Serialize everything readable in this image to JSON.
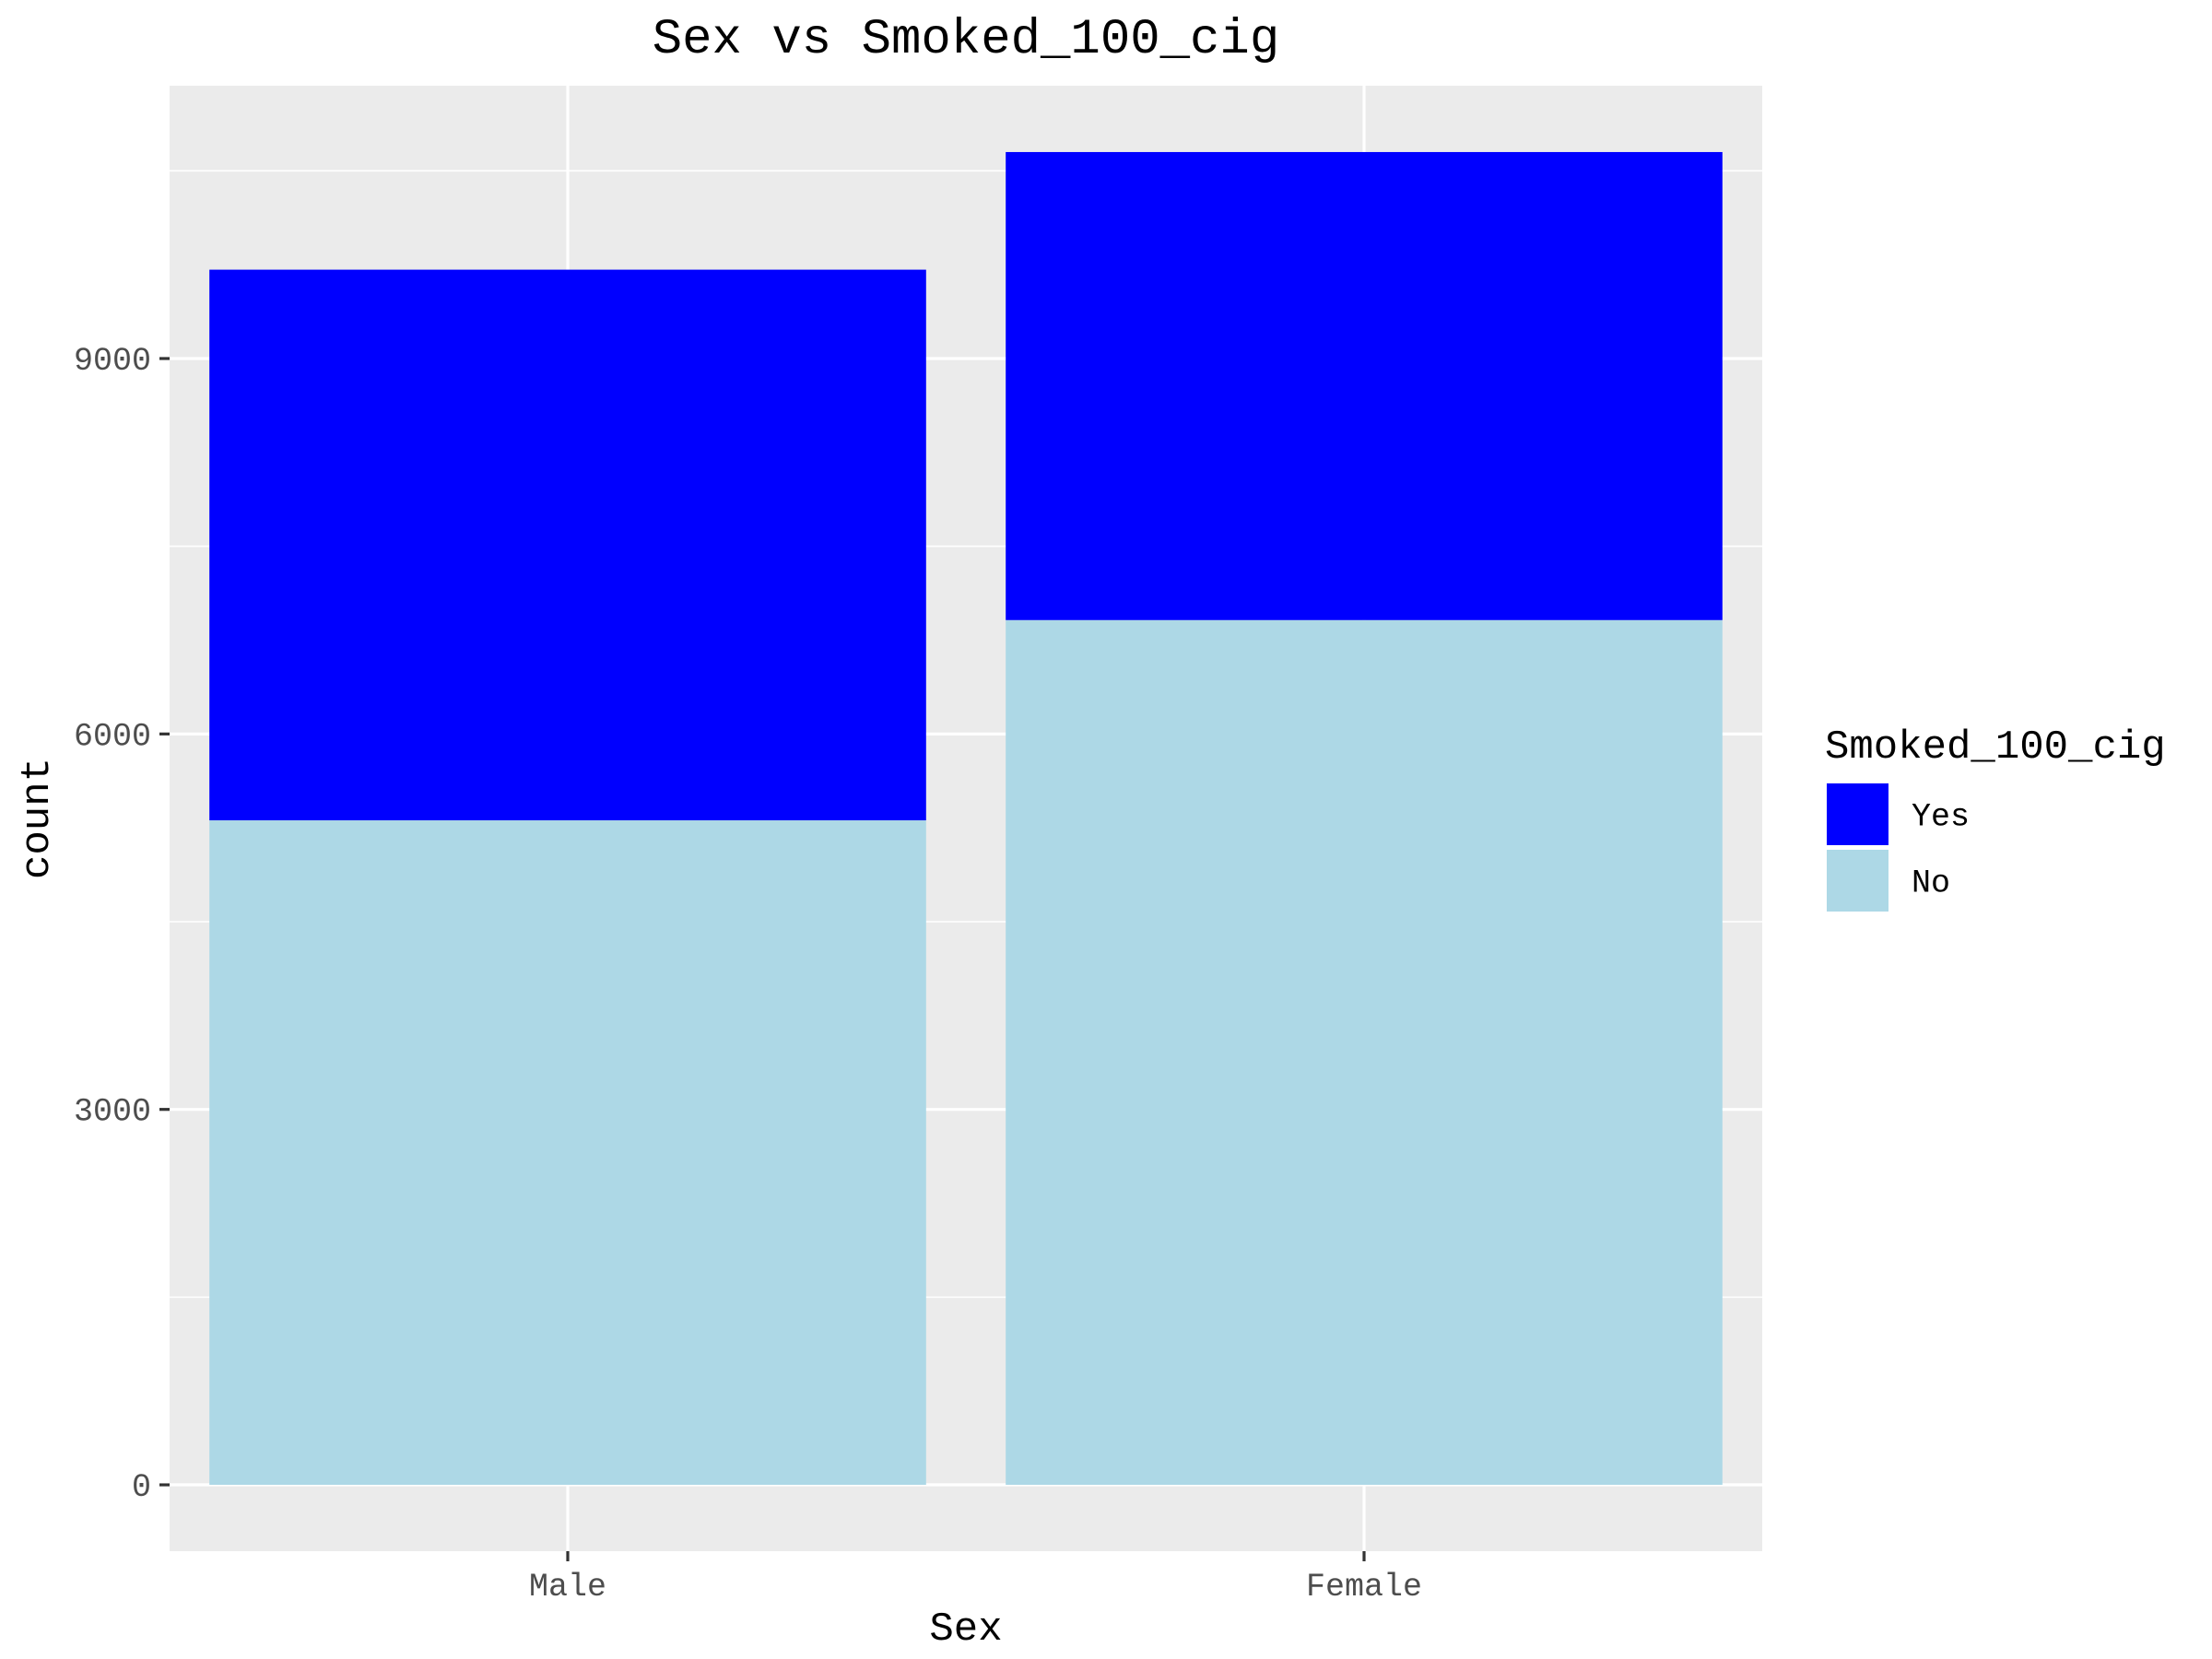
{
  "chart_data": {
    "type": "bar",
    "stacked": true,
    "title": "Sex vs Smoked_100_cig",
    "xlabel": "Sex",
    "ylabel": "count",
    "categories": [
      "Male",
      "Female"
    ],
    "series": [
      {
        "name": "Yes",
        "color": "#0000ff",
        "values": [
          4400,
          3740
        ]
      },
      {
        "name": "No",
        "color": "#add8e6",
        "values": [
          5310,
          6910
        ]
      }
    ],
    "ylim": [
      -530,
      11180
    ],
    "yticks": [
      0,
      3000,
      6000,
      9000
    ],
    "ytick_labels": [
      "0",
      "3000",
      "6000",
      "9000"
    ],
    "grid": true,
    "panel_background": "#ebebeb",
    "grid_color": "#ffffff",
    "legend": {
      "title": "Smoked_100_cig",
      "position": "right",
      "items": [
        "Yes",
        "No"
      ]
    }
  }
}
